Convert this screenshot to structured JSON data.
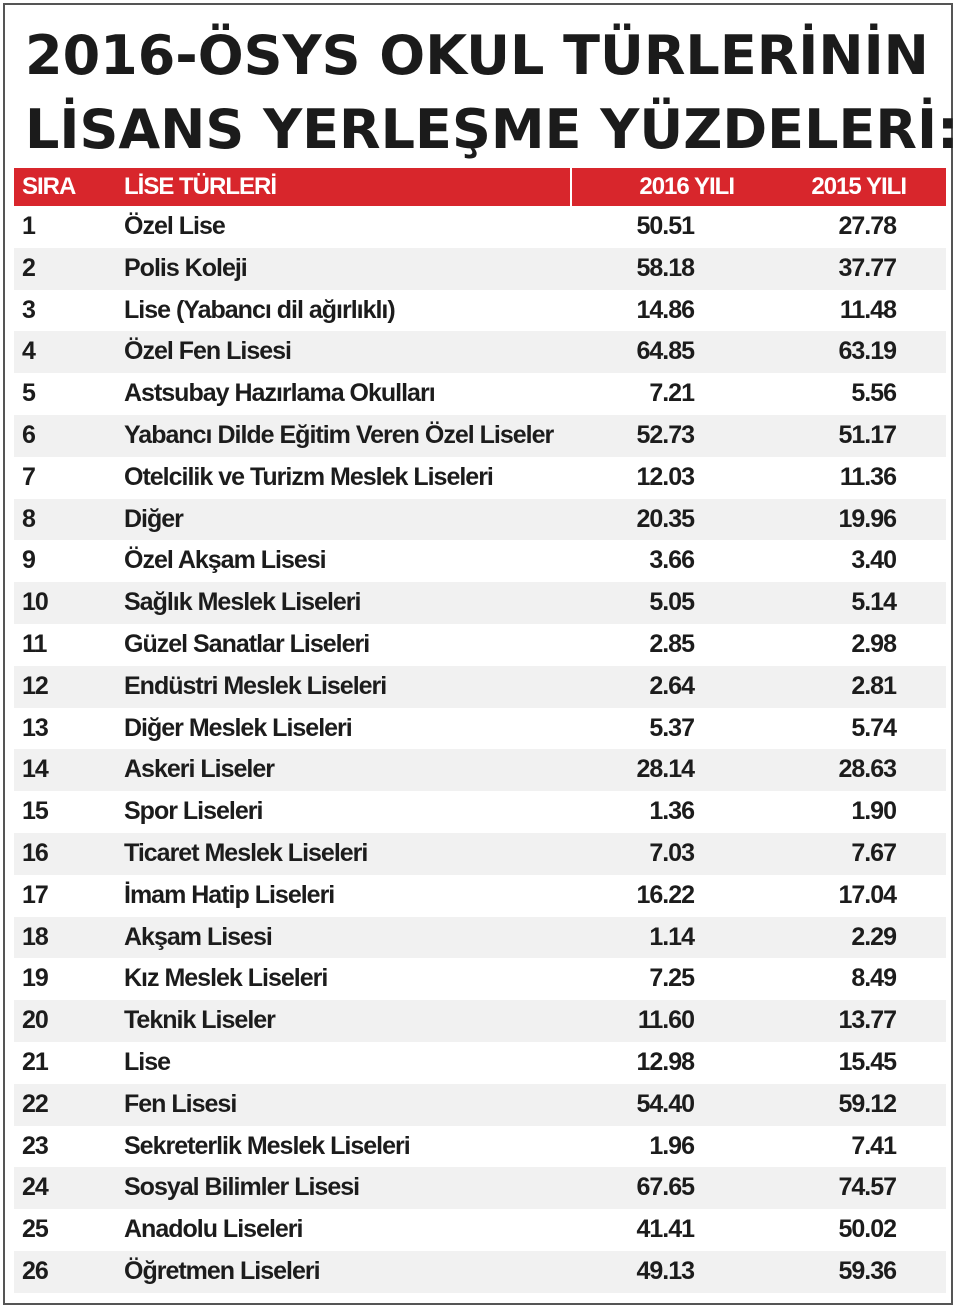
{
  "title": {
    "line1": "2016-ÖSYS OKUL TÜRLERİNİN",
    "line2": "LİSANS YERLEŞME YÜZDELERİ:"
  },
  "table": {
    "headers": {
      "rank": "SIRA",
      "name": "LİSE TÜRLERİ",
      "y2016": "2016 YILI",
      "y2015": "2015 YILI"
    },
    "rows": [
      {
        "rank": "1",
        "name": "Özel Lise",
        "y2016": "50.51",
        "y2015": "27.78"
      },
      {
        "rank": "2",
        "name": "Polis Koleji",
        "y2016": "58.18",
        "y2015": "37.77"
      },
      {
        "rank": "3",
        "name": " Lise (Yabancı dil ağırlıklı)",
        "y2016": "14.86",
        "y2015": "11.48"
      },
      {
        "rank": "4",
        "name": "Özel Fen Lisesi",
        "y2016": "64.85",
        "y2015": "63.19"
      },
      {
        "rank": "5",
        "name": "Astsubay Hazırlama Okulları",
        "y2016": "7.21",
        "y2015": "5.56"
      },
      {
        "rank": "6",
        "name": "Yabancı Dilde Eğitim Veren Özel Liseler",
        "y2016": "52.73",
        "y2015": "51.17"
      },
      {
        "rank": "7",
        "name": "Otelcilik ve Turizm Meslek Liseleri",
        "y2016": "12.03",
        "y2015": "11.36"
      },
      {
        "rank": "8",
        "name": "Diğer",
        "y2016": "20.35",
        "y2015": "19.96"
      },
      {
        "rank": "9",
        "name": "Özel Akşam Lisesi",
        "y2016": "3.66",
        "y2015": "3.40"
      },
      {
        "rank": "10",
        "name": "Sağlık Meslek Liseleri",
        "y2016": "5.05",
        "y2015": "5.14"
      },
      {
        "rank": "11",
        "name": "Güzel Sanatlar Liseleri",
        "y2016": "2.85",
        "y2015": "2.98"
      },
      {
        "rank": "12",
        "name": " Endüstri Meslek Liseleri",
        "y2016": "2.64",
        "y2015": "2.81"
      },
      {
        "rank": "13",
        "name": "Diğer Meslek Liseleri",
        "y2016": "5.37",
        "y2015": "5.74"
      },
      {
        "rank": "14",
        "name": "Askeri Liseler",
        "y2016": "28.14",
        "y2015": "28.63"
      },
      {
        "rank": "15",
        "name": "Spor Liseleri",
        "y2016": "1.36",
        "y2015": "1.90"
      },
      {
        "rank": "16",
        "name": "Ticaret Meslek Liseleri",
        "y2016": "7.03",
        "y2015": "7.67"
      },
      {
        "rank": "17",
        "name": "İmam Hatip Liseleri",
        "y2016": "16.22",
        "y2015": "17.04"
      },
      {
        "rank": "18",
        "name": "Akşam Lisesi",
        "y2016": "1.14",
        "y2015": "2.29"
      },
      {
        "rank": "19",
        "name": "Kız Meslek Liseleri",
        "y2016": "7.25",
        "y2015": "8.49"
      },
      {
        "rank": "20",
        "name": "Teknik Liseler",
        "y2016": "11.60",
        "y2015": "13.77"
      },
      {
        "rank": "21",
        "name": "Lise",
        "y2016": "12.98",
        "y2015": "15.45"
      },
      {
        "rank": "22",
        "name": "Fen Lisesi",
        "y2016": "54.40",
        "y2015": "59.12"
      },
      {
        "rank": "23",
        "name": "Sekreterlik Meslek Liseleri",
        "y2016": "1.96",
        "y2015": "7.41"
      },
      {
        "rank": "24",
        "name": "Sosyal Bilimler Lisesi",
        "y2016": "67.65",
        "y2015": "74.57"
      },
      {
        "rank": "25",
        "name": "Anadolu Liseleri",
        "y2016": "41.41",
        "y2015": "50.02"
      },
      {
        "rank": "26",
        "name": "Öğretmen Liseleri",
        "y2016": "49.13",
        "y2015": "59.36"
      }
    ]
  },
  "colors": {
    "header_bg": "#d8262c",
    "header_text": "#ffffff",
    "row_alt_bg": "#f1f1f1",
    "text": "#1c1c1c"
  }
}
